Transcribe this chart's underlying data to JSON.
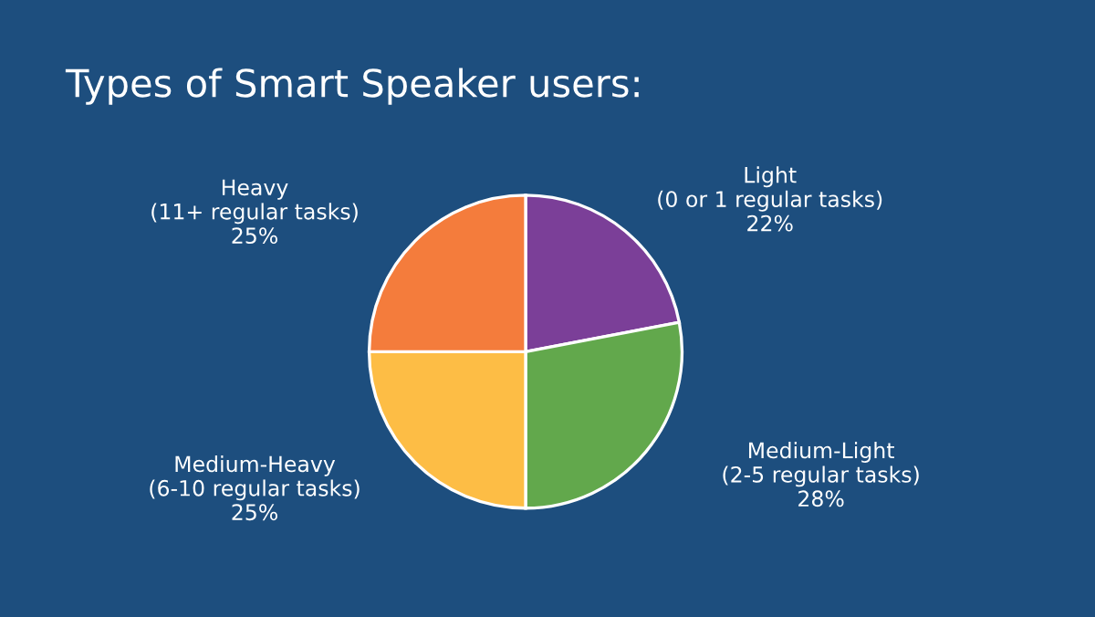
{
  "chart_data": {
    "type": "pie",
    "title": "Types of Smart Speaker users:",
    "categories": [
      "Light\n(0 or 1 regular tasks)",
      "Medium-Light\n(2-5 regular tasks)",
      "Medium-Heavy\n(6-10 regular tasks)",
      "Heavy\n(11+ regular tasks)"
    ],
    "values": [
      22,
      28,
      25,
      25
    ],
    "value_labels": [
      "22%",
      "28%",
      "25%",
      "25%"
    ],
    "colors": [
      "#7b3f98",
      "#62a84c",
      "#fdbd45",
      "#f47c3c"
    ],
    "legend": false
  }
}
